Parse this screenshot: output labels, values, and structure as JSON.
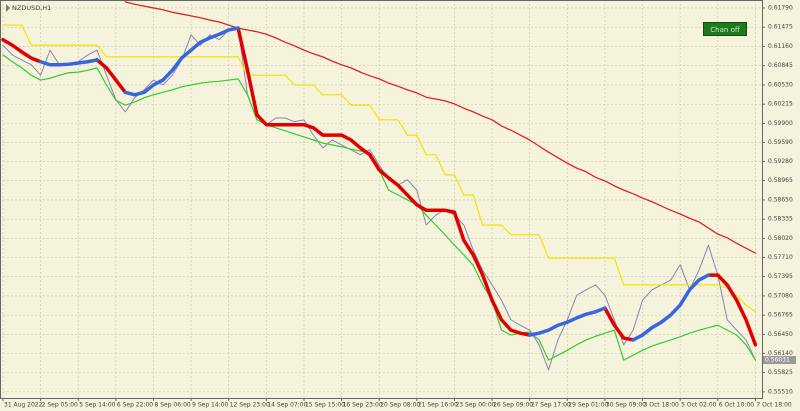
{
  "chart_data": {
    "type": "line",
    "title": "NZDUSD,H1",
    "grid": true,
    "x": [
      0,
      1,
      2,
      3,
      4,
      5,
      6,
      7,
      8,
      9,
      10,
      11,
      12,
      13,
      14,
      15,
      16,
      17,
      18,
      19,
      20,
      21,
      22,
      23,
      24,
      25,
      26,
      27,
      28,
      29,
      30,
      31,
      32,
      33,
      34,
      35,
      36,
      37,
      38,
      39,
      40,
      41,
      42,
      43,
      44,
      45,
      46,
      47,
      48,
      49,
      50,
      51,
      52,
      53,
      54,
      55,
      56,
      57,
      58,
      59,
      60,
      61,
      62,
      63,
      64,
      65,
      66,
      67,
      68,
      69,
      70,
      71,
      72,
      73,
      74,
      75,
      76,
      77,
      78,
      79,
      80
    ],
    "xlim": [
      0,
      80.7
    ],
    "xticks": [
      {
        "value": 0,
        "label": "31 Aug 2022"
      },
      {
        "value": 4,
        "label": "2 Sep 05:00"
      },
      {
        "value": 8,
        "label": "5 Sep 14:00"
      },
      {
        "value": 12,
        "label": "6 Sep 22:00"
      },
      {
        "value": 16,
        "label": "8 Sep 06:00"
      },
      {
        "value": 20,
        "label": "9 Sep 14:00"
      },
      {
        "value": 24,
        "label": "12 Sep 23:00"
      },
      {
        "value": 28,
        "label": "14 Sep 07:00"
      },
      {
        "value": 32,
        "label": "15 Sep 15:00"
      },
      {
        "value": 36,
        "label": "16 Sep 23:00"
      },
      {
        "value": 40,
        "label": "20 Sep 08:00"
      },
      {
        "value": 44,
        "label": "21 Sep 16:00"
      },
      {
        "value": 48,
        "label": "23 Sep 00:00"
      },
      {
        "value": 52,
        "label": "26 Sep 09:00"
      },
      {
        "value": 56,
        "label": "27 Sep 17:00"
      },
      {
        "value": 60,
        "label": "29 Sep 01:00"
      },
      {
        "value": 64,
        "label": "30 Sep 09:00"
      },
      {
        "value": 68,
        "label": "3 Oct 18:00"
      },
      {
        "value": 72,
        "label": "5 Oct 02:00"
      },
      {
        "value": 76,
        "label": "6 Oct 10:00"
      },
      {
        "value": 80,
        "label": "7 Oct 18:00"
      }
    ],
    "ylim": [
      0.5541,
      0.6192
    ],
    "yticks": [
      {
        "value": 0.6179,
        "label": "0.61790"
      },
      {
        "value": 0.61475,
        "label": "0.61475"
      },
      {
        "value": 0.6116,
        "label": "0.61160"
      },
      {
        "value": 0.60845,
        "label": "0.60845"
      },
      {
        "value": 0.6053,
        "label": "0.60530"
      },
      {
        "value": 0.60215,
        "label": "0.60215"
      },
      {
        "value": 0.599,
        "label": "0.59900"
      },
      {
        "value": 0.5959,
        "label": "0.59590"
      },
      {
        "value": 0.5928,
        "label": "0.59280"
      },
      {
        "value": 0.58965,
        "label": "0.58965"
      },
      {
        "value": 0.5865,
        "label": "0.58650"
      },
      {
        "value": 0.58335,
        "label": "0.58335"
      },
      {
        "value": 0.5802,
        "label": "0.58020"
      },
      {
        "value": 0.5771,
        "label": "0.57710"
      },
      {
        "value": 0.57395,
        "label": "0.57395"
      },
      {
        "value": 0.5708,
        "label": "0.57080"
      },
      {
        "value": 0.56765,
        "label": "0.56765"
      },
      {
        "value": 0.5645,
        "label": "0.56450"
      },
      {
        "value": 0.5614,
        "label": "0.56140"
      },
      {
        "value": 0.55825,
        "label": "0.55825"
      },
      {
        "value": 0.5551,
        "label": "0.55510"
      }
    ],
    "last_price": {
      "value": 0.56031,
      "label": "0.56031"
    },
    "series": [
      {
        "color": "#8a82b8",
        "width": 1,
        "values": [
          0.6118,
          0.6102,
          0.6094,
          0.6086,
          0.6069,
          0.611,
          0.6086,
          0.6086,
          0.6091,
          0.6102,
          0.611,
          0.6069,
          0.6029,
          0.6009,
          0.6032,
          0.6045,
          0.6061,
          0.6053,
          0.6069,
          0.6094,
          0.6135,
          0.6118,
          0.6135,
          0.6127,
          0.6143,
          0.6146,
          0.6037,
          0.5996,
          0.5988,
          0.5999,
          0.5999,
          0.5993,
          0.5996,
          0.5971,
          0.595,
          0.5963,
          0.5955,
          0.5947,
          0.5939,
          0.5947,
          0.5922,
          0.5898,
          0.5889,
          0.5898,
          0.5881,
          0.5824,
          0.584,
          0.5849,
          0.584,
          0.5824,
          0.5783,
          0.575,
          0.5726,
          0.5701,
          0.5669,
          0.566,
          0.5652,
          0.5628,
          0.5587,
          0.5636,
          0.5669,
          0.5709,
          0.5718,
          0.5726,
          0.5709,
          0.5669,
          0.5628,
          0.5652,
          0.5701,
          0.5718,
          0.5726,
          0.5734,
          0.5759,
          0.5718,
          0.575,
          0.5791,
          0.5742,
          0.5669,
          0.5652,
          0.5636,
          0.5603
        ]
      },
      {
        "color": "#e02424",
        "width": 1.3,
        "values": [
          null,
          null,
          null,
          null,
          null,
          null,
          null,
          null,
          null,
          null,
          null,
          null,
          null,
          0.6189,
          0.6185,
          0.6182,
          0.6179,
          0.6176,
          0.6172,
          0.6169,
          0.6166,
          0.6163,
          0.6159,
          0.6156,
          0.6151,
          0.6146,
          0.6143,
          0.614,
          0.6136,
          0.613,
          0.6123,
          0.6117,
          0.611,
          0.6104,
          0.6099,
          0.6092,
          0.6086,
          0.6081,
          0.6074,
          0.6068,
          0.6063,
          0.6056,
          0.6051,
          0.6045,
          0.604,
          0.6033,
          0.603,
          0.6027,
          0.6022,
          0.6015,
          0.6009,
          0.6002,
          0.5996,
          0.5986,
          0.5979,
          0.5971,
          0.5963,
          0.5953,
          0.5943,
          0.5934,
          0.5925,
          0.5917,
          0.5911,
          0.5902,
          0.5896,
          0.5888,
          0.5881,
          0.5875,
          0.5868,
          0.5862,
          0.5855,
          0.5848,
          0.5842,
          0.5835,
          0.5829,
          0.5819,
          0.5809,
          0.5803,
          0.5794,
          0.5786,
          0.5778
        ]
      },
      {
        "color": "#f2e600",
        "width": 1.2,
        "values": [
          0.6151,
          0.6151,
          0.6151,
          0.6118,
          0.6118,
          0.6118,
          0.6118,
          0.6118,
          0.6118,
          0.6118,
          0.6118,
          0.6099,
          0.6099,
          0.6099,
          0.6099,
          0.6099,
          0.6099,
          0.6099,
          0.6099,
          0.6099,
          0.6099,
          0.6099,
          0.6099,
          0.6099,
          0.6099,
          0.6099,
          0.6069,
          0.6069,
          0.6069,
          0.6069,
          0.6069,
          0.6053,
          0.6053,
          0.6053,
          0.6037,
          0.6037,
          0.6037,
          0.602,
          0.602,
          0.602,
          0.5996,
          0.5996,
          0.5996,
          0.5971,
          0.5971,
          0.5939,
          0.5939,
          0.5906,
          0.5906,
          0.5873,
          0.5873,
          0.5824,
          0.5824,
          0.5824,
          0.5808,
          0.5808,
          0.5808,
          0.5808,
          0.577,
          0.577,
          0.577,
          0.577,
          0.577,
          0.577,
          0.577,
          0.577,
          0.5726,
          0.5726,
          0.5726,
          0.5726,
          0.5726,
          0.5726,
          0.5726,
          0.5726,
          0.5726,
          0.5726,
          0.5726,
          0.5721,
          0.5709,
          0.5693,
          0.5682
        ]
      },
      {
        "color": "#33cc33",
        "width": 1.2,
        "values": [
          0.6102,
          0.6091,
          0.6081,
          0.6069,
          0.6061,
          0.6064,
          0.6069,
          0.6073,
          0.6074,
          0.6077,
          0.6081,
          0.6053,
          0.6028,
          0.602,
          0.6025,
          0.6032,
          0.6037,
          0.6041,
          0.6045,
          0.605,
          0.6053,
          0.6056,
          0.6058,
          0.6059,
          0.6061,
          0.6063,
          0.6037,
          0.5996,
          0.5988,
          0.5983,
          0.5978,
          0.5973,
          0.5968,
          0.5963,
          0.5958,
          0.5955,
          0.5952,
          0.5948,
          0.5945,
          0.5942,
          0.5914,
          0.5881,
          0.5873,
          0.5865,
          0.5857,
          0.584,
          0.5824,
          0.5808,
          0.5791,
          0.5775,
          0.5758,
          0.5726,
          0.5701,
          0.5652,
          0.5644,
          0.5647,
          0.5649,
          0.5636,
          0.5603,
          0.5611,
          0.5619,
          0.5628,
          0.5636,
          0.5642,
          0.5647,
          0.5652,
          0.5603,
          0.5611,
          0.5619,
          0.5626,
          0.5631,
          0.5636,
          0.5641,
          0.5647,
          0.5652,
          0.5656,
          0.566,
          0.5652,
          0.5644,
          0.5628,
          0.5603
        ]
      },
      {
        "color": "#e00000",
        "width": 3.5,
        "values": [
          0.6127,
          0.6118,
          0.6107,
          0.6097,
          0.6091,
          null,
          null,
          null,
          null,
          null,
          0.6094,
          0.6081,
          0.6061,
          0.6041,
          null,
          null,
          null,
          null,
          null,
          null,
          null,
          null,
          null,
          null,
          null,
          0.6146,
          0.6077,
          0.6004,
          0.5988,
          0.5988,
          0.5988,
          0.5988,
          0.5988,
          0.5983,
          0.5971,
          0.5971,
          0.5971,
          0.5963,
          0.595,
          0.5939,
          0.5914,
          0.5901,
          0.5889,
          0.5873,
          0.5857,
          0.5848,
          0.5848,
          0.5848,
          0.5845,
          0.5799,
          0.5775,
          0.5742,
          0.5701,
          0.5669,
          0.5652,
          0.5647,
          0.5644,
          null,
          null,
          null,
          null,
          null,
          null,
          null,
          0.5688,
          0.566,
          0.5639,
          0.5636,
          null,
          null,
          null,
          null,
          null,
          null,
          null,
          0.5742,
          0.5742,
          0.5726,
          0.5701,
          0.5669,
          0.5628
        ]
      },
      {
        "color": "#3a66dd",
        "width": 3.5,
        "values": [
          null,
          null,
          null,
          null,
          0.6091,
          0.6086,
          0.6086,
          0.6087,
          0.6089,
          0.6091,
          0.6094,
          null,
          null,
          0.6041,
          0.6037,
          0.6041,
          0.6053,
          0.6061,
          0.6077,
          0.6097,
          0.611,
          0.6123,
          0.613,
          0.6136,
          0.6143,
          0.6146,
          null,
          null,
          null,
          null,
          null,
          null,
          null,
          null,
          null,
          null,
          null,
          null,
          null,
          null,
          null,
          null,
          null,
          null,
          null,
          null,
          null,
          null,
          null,
          null,
          null,
          null,
          null,
          null,
          null,
          null,
          0.5644,
          0.5647,
          0.5652,
          0.566,
          0.5665,
          0.5672,
          0.5678,
          0.5682,
          0.5688,
          null,
          null,
          0.5636,
          0.5644,
          0.5656,
          0.5665,
          0.5677,
          0.5693,
          0.5718,
          0.5734,
          0.5742,
          null,
          null,
          null,
          null,
          null
        ]
      }
    ]
  },
  "controls": {
    "chan_button": "Chan off"
  }
}
